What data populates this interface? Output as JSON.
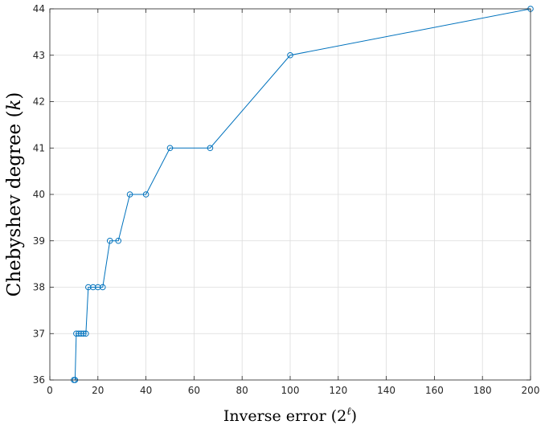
{
  "chart_data": {
    "type": "line",
    "xlabel": "Inverse error (2",
    "xlabel_sup": "ℓ",
    "xlabel_end": ")",
    "ylabel": "Chebyshev degree (",
    "ylabel_var": "k",
    "ylabel_end": ")",
    "xlim": [
      0,
      200
    ],
    "ylim": [
      36,
      44
    ],
    "xticks": [
      0,
      20,
      40,
      60,
      80,
      100,
      120,
      140,
      160,
      180,
      200
    ],
    "yticks": [
      36,
      37,
      38,
      39,
      40,
      41,
      42,
      43,
      44
    ],
    "grid": true,
    "color": "#0072BD",
    "marker": "circle",
    "series": [
      {
        "x": [
          10,
          10.5,
          11,
          12,
          13,
          14,
          15,
          16,
          18,
          20,
          22,
          25,
          28.5,
          33.3,
          40,
          50,
          66.7,
          100,
          200
        ],
        "y": [
          36,
          36,
          37,
          37,
          37,
          37,
          37,
          38,
          38,
          38,
          38,
          39,
          39,
          40,
          40,
          41,
          41,
          43,
          44
        ]
      }
    ]
  }
}
